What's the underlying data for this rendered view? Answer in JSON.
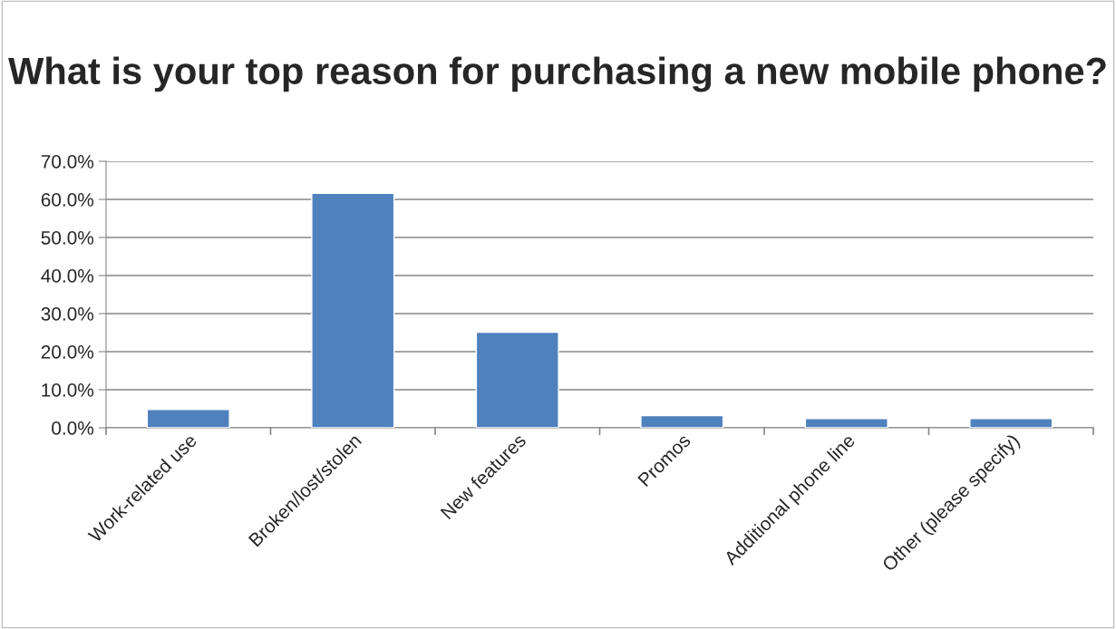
{
  "chart_data": {
    "type": "bar",
    "title": "What is your top reason for purchasing a new mobile phone?",
    "categories": [
      "Work-related use",
      "Broken/lost/stolen",
      "New features",
      "Promos",
      "Additional phone line",
      "Other (please specify)"
    ],
    "values": [
      4.8,
      61.6,
      25.1,
      3.2,
      2.4,
      2.4
    ],
    "color": "#4f81bd",
    "ylim": [
      0,
      70
    ],
    "yticks": [
      {
        "value": 0,
        "label": "0.0%"
      },
      {
        "value": 10,
        "label": "10.0%"
      },
      {
        "value": 20,
        "label": "20.0%"
      },
      {
        "value": 30,
        "label": "30.0%"
      },
      {
        "value": 40,
        "label": "40.0%"
      },
      {
        "value": 50,
        "label": "50.0%"
      },
      {
        "value": 60,
        "label": "60.0%"
      },
      {
        "value": 70,
        "label": "70.0%"
      }
    ],
    "grid": "y",
    "legend": false
  }
}
